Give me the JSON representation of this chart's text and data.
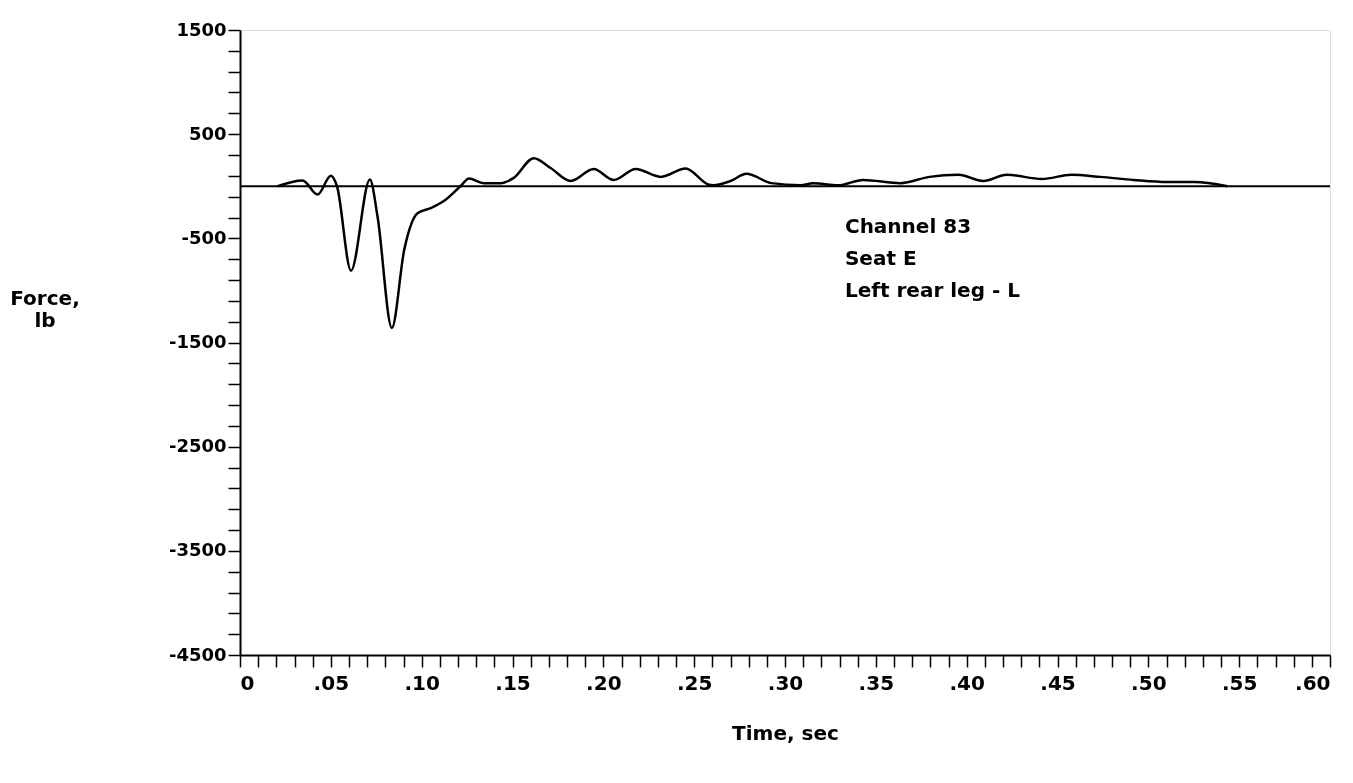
{
  "chart_data": {
    "type": "line",
    "xlabel": "Time, sec",
    "ylabel": "Force, lb",
    "annotations": [
      "Channel 83",
      "Seat E",
      "Left rear leg - L"
    ],
    "series": [
      {
        "color": "#000000",
        "x": [
          0.0207,
          0.0345,
          0.0427,
          0.05,
          0.0534,
          0.0611,
          0.0715,
          0.0757,
          0.0836,
          0.0904,
          0.0977,
          0.105,
          0.1124,
          0.1216,
          0.126,
          0.1342,
          0.1436,
          0.1507,
          0.1617,
          0.171,
          0.182,
          0.1947,
          0.2057,
          0.2178,
          0.2316,
          0.2453,
          0.2581,
          0.2604,
          0.27,
          0.2788,
          0.2925,
          0.3086,
          0.3155,
          0.3292,
          0.343,
          0.3636,
          0.3795,
          0.3955,
          0.4092,
          0.422,
          0.4415,
          0.4576,
          0.4736,
          0.4919,
          0.5103,
          0.5252,
          0.5435
        ],
        "values": [
          0,
          55,
          -80,
          100,
          0,
          -810,
          65,
          -290,
          -1360,
          -610,
          -260,
          -210,
          -140,
          5,
          75,
          30,
          30,
          80,
          270,
          175,
          50,
          165,
          60,
          165,
          90,
          170,
          15,
          10,
          50,
          120,
          30,
          10,
          30,
          10,
          60,
          30,
          90,
          110,
          50,
          110,
          70,
          110,
          90,
          60,
          40,
          40,
          0
        ]
      }
    ],
    "ref_lines": [
      {
        "axis": "y",
        "value": 0,
        "color": "#000000"
      }
    ],
    "xlim": [
      0,
      0.6
    ],
    "xticks": [
      {
        "value": 0,
        "label": "0"
      },
      {
        "value": 0.01,
        "label": null
      },
      {
        "value": 0.02,
        "label": null
      },
      {
        "value": 0.03,
        "label": null
      },
      {
        "value": 0.04,
        "label": null
      },
      {
        "value": 0.05,
        "label": ".05"
      },
      {
        "value": 0.06,
        "label": null
      },
      {
        "value": 0.07,
        "label": null
      },
      {
        "value": 0.08,
        "label": null
      },
      {
        "value": 0.09,
        "label": null
      },
      {
        "value": 0.1,
        "label": ".10"
      },
      {
        "value": 0.11,
        "label": null
      },
      {
        "value": 0.12,
        "label": null
      },
      {
        "value": 0.13,
        "label": null
      },
      {
        "value": 0.14,
        "label": null
      },
      {
        "value": 0.15,
        "label": ".15"
      },
      {
        "value": 0.16,
        "label": null
      },
      {
        "value": 0.17,
        "label": null
      },
      {
        "value": 0.18,
        "label": null
      },
      {
        "value": 0.19,
        "label": null
      },
      {
        "value": 0.2,
        "label": ".20"
      },
      {
        "value": 0.21,
        "label": null
      },
      {
        "value": 0.22,
        "label": null
      },
      {
        "value": 0.23,
        "label": null
      },
      {
        "value": 0.24,
        "label": null
      },
      {
        "value": 0.25,
        "label": ".25"
      },
      {
        "value": 0.26,
        "label": null
      },
      {
        "value": 0.27,
        "label": null
      },
      {
        "value": 0.28,
        "label": null
      },
      {
        "value": 0.29,
        "label": null
      },
      {
        "value": 0.3,
        "label": ".30"
      },
      {
        "value": 0.31,
        "label": null
      },
      {
        "value": 0.32,
        "label": null
      },
      {
        "value": 0.33,
        "label": null
      },
      {
        "value": 0.34,
        "label": null
      },
      {
        "value": 0.35,
        "label": ".35"
      },
      {
        "value": 0.36,
        "label": null
      },
      {
        "value": 0.37,
        "label": null
      },
      {
        "value": 0.38,
        "label": null
      },
      {
        "value": 0.39,
        "label": null
      },
      {
        "value": 0.4,
        "label": ".40"
      },
      {
        "value": 0.41,
        "label": null
      },
      {
        "value": 0.42,
        "label": null
      },
      {
        "value": 0.43,
        "label": null
      },
      {
        "value": 0.44,
        "label": null
      },
      {
        "value": 0.45,
        "label": ".45"
      },
      {
        "value": 0.46,
        "label": null
      },
      {
        "value": 0.47,
        "label": null
      },
      {
        "value": 0.48,
        "label": null
      },
      {
        "value": 0.49,
        "label": null
      },
      {
        "value": 0.5,
        "label": ".50"
      },
      {
        "value": 0.51,
        "label": null
      },
      {
        "value": 0.52,
        "label": null
      },
      {
        "value": 0.53,
        "label": null
      },
      {
        "value": 0.54,
        "label": null
      },
      {
        "value": 0.55,
        "label": ".55"
      },
      {
        "value": 0.56,
        "label": null
      },
      {
        "value": 0.57,
        "label": null
      },
      {
        "value": 0.58,
        "label": null
      },
      {
        "value": 0.59,
        "label": null
      },
      {
        "value": 0.6,
        "label": ".60"
      }
    ],
    "ylim": [
      -4500,
      1500
    ],
    "yticks": [
      1500,
      {
        "value": 1300,
        "label": null
      },
      {
        "value": 1100,
        "label": null
      },
      {
        "value": 900,
        "label": null
      },
      {
        "value": 700,
        "label": null
      },
      500,
      {
        "value": 300,
        "label": null
      },
      {
        "value": 100,
        "label": null
      },
      {
        "value": -100,
        "label": null
      },
      {
        "value": -300,
        "label": null
      },
      -500,
      {
        "value": -700,
        "label": null
      },
      {
        "value": -900,
        "label": null
      },
      {
        "value": -1100,
        "label": null
      },
      {
        "value": -1300,
        "label": null
      },
      -1500,
      {
        "value": -1700,
        "label": null
      },
      {
        "value": -1900,
        "label": null
      },
      {
        "value": -2100,
        "label": null
      },
      {
        "value": -2300,
        "label": null
      },
      -2500,
      {
        "value": -2700,
        "label": null
      },
      {
        "value": -2900,
        "label": null
      },
      {
        "value": -3100,
        "label": null
      },
      {
        "value": -3300,
        "label": null
      },
      -3500,
      {
        "value": -3700,
        "label": null
      },
      {
        "value": -3900,
        "label": null
      },
      {
        "value": -4100,
        "label": null
      },
      {
        "value": -4300,
        "label": null
      },
      -4500
    ],
    "grid": false,
    "marker": "none",
    "line_style": "solid"
  }
}
